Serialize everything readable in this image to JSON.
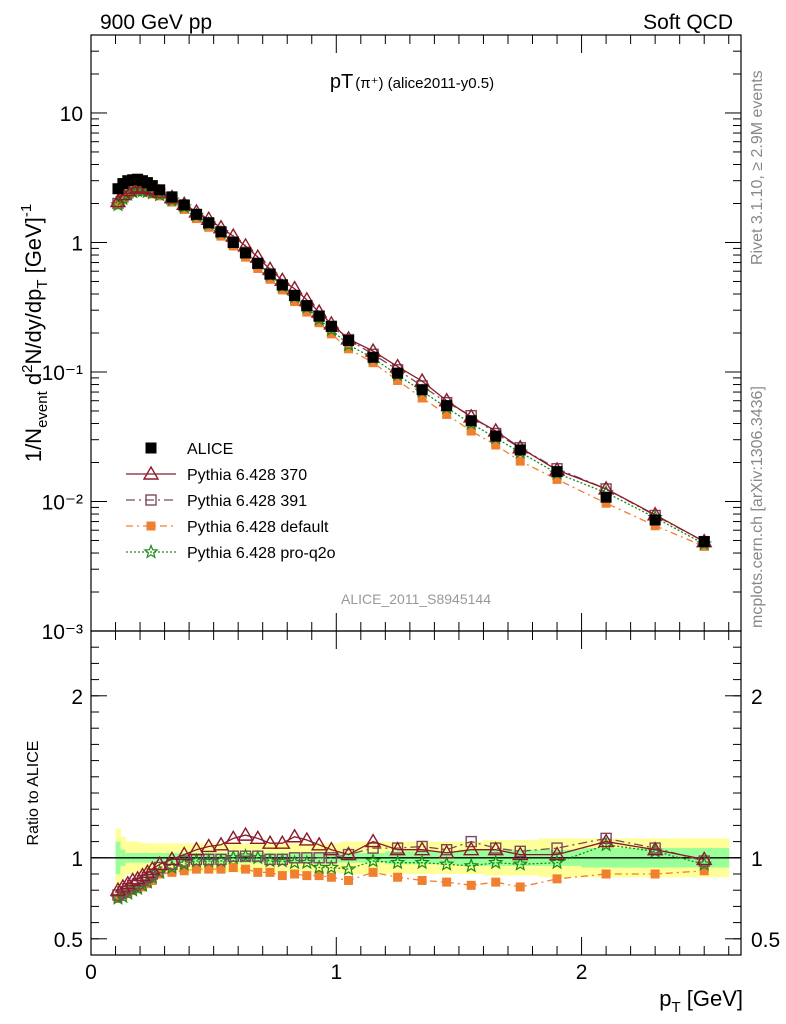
{
  "header": {
    "left": "900 GeV pp",
    "right": "Soft QCD"
  },
  "side_labels": {
    "rivet": "Rivet 3.1.10, ≥ 2.9M events",
    "mcplots": "mcplots.cern.ch [arXiv:1306.3436]"
  },
  "colors": {
    "alice": "#000000",
    "p370": "#8b1a2b",
    "p391": "#7a4a5a",
    "pdefault": "#f08030",
    "pq2o": "#1a8a1a",
    "band_yellow": "#ffff99",
    "band_green": "#99ff99"
  },
  "chart_data": [
    {
      "type": "scatter",
      "plot_title": "pT(π⁺) (alice2011-y0.5)",
      "title_main": "pT",
      "title_paren": "(π⁺) (alice2011-y0.5)",
      "ylabel": "1/N_event d²N/dy/dp_T [GeV]⁻¹",
      "yscale": "log",
      "ylim": [
        0.001,
        40
      ],
      "xlim": [
        0,
        2.65
      ],
      "y_ticks": [
        {
          "value": 10,
          "label": "10"
        },
        {
          "value": 1,
          "label": "1"
        },
        {
          "value": 0.1,
          "label": "10⁻¹"
        },
        {
          "value": 0.01,
          "label": "10⁻²"
        },
        {
          "value": 0.001,
          "label": "10⁻³"
        }
      ],
      "watermark": "ALICE_2011_S8945144",
      "x": [
        0.11,
        0.13,
        0.15,
        0.17,
        0.19,
        0.21,
        0.23,
        0.25,
        0.28,
        0.33,
        0.38,
        0.43,
        0.48,
        0.53,
        0.58,
        0.63,
        0.68,
        0.73,
        0.78,
        0.83,
        0.88,
        0.93,
        0.98,
        1.05,
        1.15,
        1.25,
        1.35,
        1.45,
        1.55,
        1.65,
        1.75,
        1.9,
        2.1,
        2.3,
        2.5
      ],
      "series": [
        {
          "name": "ALICE",
          "marker": "square-filled",
          "values": [
            2.6,
            2.85,
            3.0,
            3.05,
            3.08,
            3.0,
            2.9,
            2.75,
            2.55,
            2.25,
            1.95,
            1.65,
            1.42,
            1.21,
            1.0,
            0.83,
            0.69,
            0.57,
            0.47,
            0.39,
            0.325,
            0.27,
            0.225,
            0.175,
            0.13,
            0.098,
            0.073,
            0.055,
            0.042,
            0.032,
            0.025,
            0.017,
            0.0108,
            0.0072,
            0.0049
          ]
        },
        {
          "name": "Pythia 6.428 370",
          "marker": "triangle-open",
          "values": [
            2.07,
            2.34,
            2.52,
            2.62,
            2.68,
            2.66,
            2.62,
            2.55,
            2.45,
            2.22,
            1.97,
            1.72,
            1.51,
            1.3,
            1.12,
            0.94,
            0.77,
            0.62,
            0.51,
            0.44,
            0.36,
            0.29,
            0.235,
            0.18,
            0.145,
            0.11,
            0.085,
            0.06,
            0.045,
            0.035,
            0.026,
            0.0175,
            0.0125,
            0.0079,
            0.0049
          ]
        },
        {
          "name": "Pythia 6.428 391",
          "marker": "square-open",
          "values": [
            2.0,
            2.25,
            2.42,
            2.52,
            2.58,
            2.57,
            2.53,
            2.48,
            2.4,
            2.17,
            1.92,
            1.63,
            1.4,
            1.2,
            1.01,
            0.84,
            0.69,
            0.57,
            0.47,
            0.39,
            0.325,
            0.27,
            0.225,
            0.178,
            0.137,
            0.104,
            0.078,
            0.058,
            0.046,
            0.0335,
            0.026,
            0.0179,
            0.0125,
            0.0078,
            0.0049
          ]
        },
        {
          "name": "Pythia 6.428 default",
          "marker": "square-filled-small",
          "values": [
            1.95,
            2.18,
            2.35,
            2.44,
            2.49,
            2.47,
            2.43,
            2.37,
            2.29,
            2.05,
            1.8,
            1.53,
            1.31,
            1.12,
            0.94,
            0.77,
            0.63,
            0.52,
            0.43,
            0.35,
            0.29,
            0.24,
            0.197,
            0.151,
            0.118,
            0.086,
            0.063,
            0.047,
            0.035,
            0.0273,
            0.0205,
            0.0148,
            0.0097,
            0.0065,
            0.0045
          ]
        },
        {
          "name": "Pythia 6.428 pro-q2o",
          "marker": "star",
          "values": [
            1.95,
            2.18,
            2.35,
            2.45,
            2.51,
            2.5,
            2.47,
            2.41,
            2.33,
            2.12,
            1.88,
            1.62,
            1.39,
            1.19,
            1.0,
            0.84,
            0.69,
            0.56,
            0.46,
            0.38,
            0.315,
            0.255,
            0.212,
            0.162,
            0.128,
            0.095,
            0.071,
            0.053,
            0.04,
            0.031,
            0.024,
            0.0165,
            0.0117,
            0.0075,
            0.0047
          ]
        }
      ]
    },
    {
      "type": "line",
      "ylabel": "Ratio to ALICE",
      "xlabel": "p_T [GeV]",
      "ylim": [
        0.4,
        2.4
      ],
      "xlim": [
        0,
        2.65
      ],
      "y_ticks": [
        {
          "value": 0.5,
          "label": "0.5"
        },
        {
          "value": 1,
          "label": "1"
        },
        {
          "value": 2,
          "label": "2"
        }
      ],
      "x_ticks": [
        {
          "value": 0,
          "label": "0"
        },
        {
          "value": 1,
          "label": "1"
        },
        {
          "value": 2,
          "label": "2"
        }
      ],
      "x": [
        0.11,
        0.13,
        0.15,
        0.17,
        0.19,
        0.21,
        0.23,
        0.25,
        0.28,
        0.33,
        0.38,
        0.43,
        0.48,
        0.53,
        0.58,
        0.63,
        0.68,
        0.73,
        0.78,
        0.83,
        0.88,
        0.93,
        0.98,
        1.05,
        1.15,
        1.25,
        1.35,
        1.45,
        1.55,
        1.65,
        1.75,
        1.9,
        2.1,
        2.3,
        2.5
      ],
      "bands": {
        "yellow_halfwidth": [
          0.18,
          0.13,
          0.1,
          0.1,
          0.1,
          0.09,
          0.09,
          0.09,
          0.09,
          0.09,
          0.09,
          0.09,
          0.09,
          0.09,
          0.09,
          0.09,
          0.09,
          0.09,
          0.09,
          0.09,
          0.09,
          0.09,
          0.09,
          0.1,
          0.1,
          0.1,
          0.1,
          0.1,
          0.1,
          0.11,
          0.11,
          0.12,
          0.12,
          0.12,
          0.12
        ],
        "green_halfwidth": [
          0.1,
          0.05,
          0.03,
          0.03,
          0.03,
          0.03,
          0.03,
          0.03,
          0.03,
          0.03,
          0.03,
          0.03,
          0.03,
          0.03,
          0.03,
          0.03,
          0.03,
          0.03,
          0.03,
          0.03,
          0.03,
          0.03,
          0.03,
          0.03,
          0.03,
          0.04,
          0.04,
          0.04,
          0.05,
          0.05,
          0.05,
          0.05,
          0.06,
          0.06,
          0.06
        ]
      },
      "series": [
        {
          "name": "Pythia 6.428 370",
          "marker": "triangle-open",
          "values": [
            0.8,
            0.82,
            0.84,
            0.86,
            0.87,
            0.89,
            0.91,
            0.93,
            0.96,
            0.99,
            1.02,
            1.05,
            1.07,
            1.08,
            1.12,
            1.14,
            1.12,
            1.09,
            1.09,
            1.13,
            1.11,
            1.08,
            1.05,
            1.02,
            1.1,
            1.05,
            1.05,
            1.03,
            1.05,
            1.05,
            1.02,
            1.02,
            1.1,
            1.05,
            0.99
          ]
        },
        {
          "name": "Pythia 6.428 391",
          "marker": "square-open",
          "values": [
            0.77,
            0.79,
            0.81,
            0.83,
            0.84,
            0.86,
            0.88,
            0.9,
            0.94,
            0.96,
            0.98,
            0.99,
            0.99,
            0.99,
            1.01,
            1.01,
            1.01,
            0.99,
            0.99,
            1.0,
            1.0,
            1.0,
            1.0,
            1.02,
            1.06,
            1.06,
            1.07,
            1.05,
            1.1,
            1.06,
            1.04,
            1.06,
            1.12,
            1.06,
            0.98
          ]
        },
        {
          "name": "Pythia 6.428 default",
          "marker": "square-filled-small",
          "values": [
            0.75,
            0.77,
            0.78,
            0.8,
            0.81,
            0.82,
            0.84,
            0.86,
            0.9,
            0.91,
            0.92,
            0.93,
            0.93,
            0.93,
            0.94,
            0.93,
            0.91,
            0.91,
            0.89,
            0.9,
            0.89,
            0.89,
            0.88,
            0.86,
            0.91,
            0.88,
            0.86,
            0.85,
            0.83,
            0.85,
            0.82,
            0.87,
            0.9,
            0.9,
            0.92
          ]
        },
        {
          "name": "Pythia 6.428 pro-q2o",
          "marker": "star",
          "values": [
            0.75,
            0.76,
            0.78,
            0.8,
            0.81,
            0.83,
            0.85,
            0.88,
            0.91,
            0.94,
            0.96,
            0.98,
            0.98,
            0.98,
            1.0,
            1.01,
            1.0,
            0.98,
            0.98,
            0.97,
            0.97,
            0.94,
            0.94,
            0.93,
            0.98,
            0.97,
            0.97,
            0.96,
            0.95,
            0.97,
            0.96,
            0.97,
            1.08,
            1.04,
            0.96
          ]
        }
      ]
    }
  ],
  "legend": {
    "entries": [
      "ALICE",
      "Pythia 6.428 370",
      "Pythia 6.428 391",
      "Pythia 6.428 default",
      "Pythia 6.428 pro-q2o"
    ]
  }
}
